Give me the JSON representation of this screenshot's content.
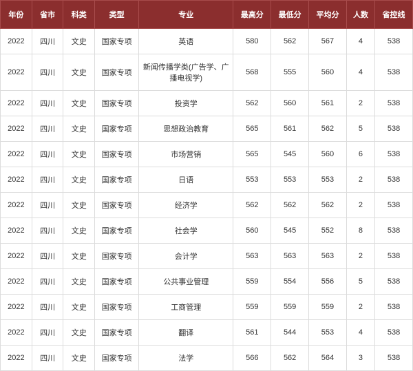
{
  "header": {
    "year": "年份",
    "province": "省市",
    "category": "科类",
    "type": "类型",
    "major": "专业",
    "max": "最高分",
    "min": "最低分",
    "avg": "平均分",
    "count": "人数",
    "cutoff": "省控线"
  },
  "rows": [
    {
      "year": "2022",
      "province": "四川",
      "category": "文史",
      "type": "国家专项",
      "major": "英语",
      "max": "580",
      "min": "562",
      "avg": "567",
      "count": "4",
      "cutoff": "538"
    },
    {
      "year": "2022",
      "province": "四川",
      "category": "文史",
      "type": "国家专项",
      "major": "新闻传播学类(广告学、广播电视学)",
      "max": "568",
      "min": "555",
      "avg": "560",
      "count": "4",
      "cutoff": "538"
    },
    {
      "year": "2022",
      "province": "四川",
      "category": "文史",
      "type": "国家专项",
      "major": "投资学",
      "max": "562",
      "min": "560",
      "avg": "561",
      "count": "2",
      "cutoff": "538"
    },
    {
      "year": "2022",
      "province": "四川",
      "category": "文史",
      "type": "国家专项",
      "major": "思想政治教育",
      "max": "565",
      "min": "561",
      "avg": "562",
      "count": "5",
      "cutoff": "538"
    },
    {
      "year": "2022",
      "province": "四川",
      "category": "文史",
      "type": "国家专项",
      "major": "市场营销",
      "max": "565",
      "min": "545",
      "avg": "560",
      "count": "6",
      "cutoff": "538"
    },
    {
      "year": "2022",
      "province": "四川",
      "category": "文史",
      "type": "国家专项",
      "major": "日语",
      "max": "553",
      "min": "553",
      "avg": "553",
      "count": "2",
      "cutoff": "538"
    },
    {
      "year": "2022",
      "province": "四川",
      "category": "文史",
      "type": "国家专项",
      "major": "经济学",
      "max": "562",
      "min": "562",
      "avg": "562",
      "count": "2",
      "cutoff": "538"
    },
    {
      "year": "2022",
      "province": "四川",
      "category": "文史",
      "type": "国家专项",
      "major": "社会学",
      "max": "560",
      "min": "545",
      "avg": "552",
      "count": "8",
      "cutoff": "538"
    },
    {
      "year": "2022",
      "province": "四川",
      "category": "文史",
      "type": "国家专项",
      "major": "会计学",
      "max": "563",
      "min": "563",
      "avg": "563",
      "count": "2",
      "cutoff": "538"
    },
    {
      "year": "2022",
      "province": "四川",
      "category": "文史",
      "type": "国家专项",
      "major": "公共事业管理",
      "max": "559",
      "min": "554",
      "avg": "556",
      "count": "5",
      "cutoff": "538"
    },
    {
      "year": "2022",
      "province": "四川",
      "category": "文史",
      "type": "国家专项",
      "major": "工商管理",
      "max": "559",
      "min": "559",
      "avg": "559",
      "count": "2",
      "cutoff": "538"
    },
    {
      "year": "2022",
      "province": "四川",
      "category": "文史",
      "type": "国家专项",
      "major": "翻译",
      "max": "561",
      "min": "544",
      "avg": "553",
      "count": "4",
      "cutoff": "538"
    },
    {
      "year": "2022",
      "province": "四川",
      "category": "文史",
      "type": "国家专项",
      "major": "法学",
      "max": "566",
      "min": "562",
      "avg": "564",
      "count": "3",
      "cutoff": "538"
    }
  ],
  "style": {
    "header_bg": "#8b2e2e",
    "header_text": "#ffffff",
    "header_border": "#a84c4c",
    "cell_border": "#dcdcdc",
    "cell_text": "#333333",
    "font_size": 11
  }
}
